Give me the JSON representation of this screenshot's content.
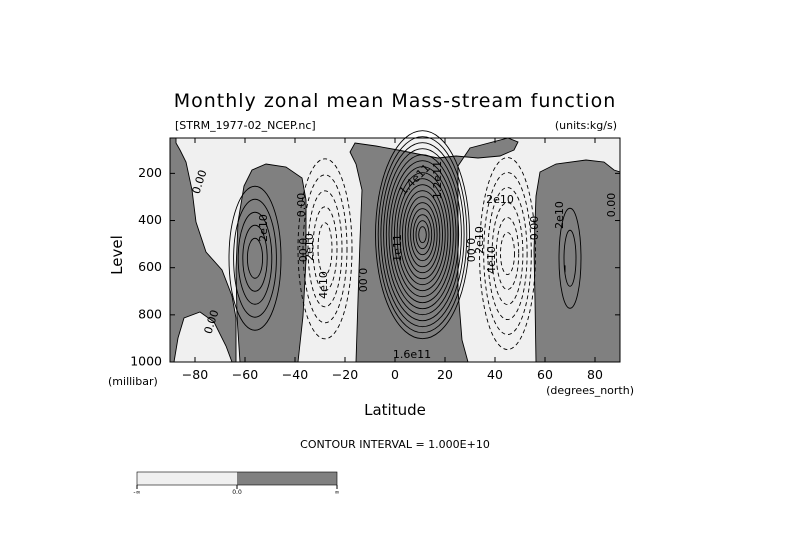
{
  "chart_data": {
    "type": "contour",
    "title": "Monthly zonal mean Mass-stream function",
    "subtitle_left": "[STRM_1977-02_NCEP.nc]",
    "subtitle_right": "(units:kg/s)",
    "xlabel": "Latitude",
    "x_unit": "(degrees_north)",
    "ylabel": "Level",
    "y_unit": "(millibar)",
    "xlim": [
      -90,
      90
    ],
    "ylim": [
      1000,
      50
    ],
    "y_inverted": true,
    "x_ticks": [
      -80,
      -60,
      -40,
      -20,
      0,
      20,
      40,
      60,
      80
    ],
    "x_tick_labels": [
      "−80",
      "−60",
      "−40",
      "−20",
      "0",
      "20",
      "40",
      "60",
      "80"
    ],
    "y_ticks": [
      200,
      400,
      600,
      800,
      1000
    ],
    "y_tick_labels": [
      "200",
      "400",
      "600",
      "800",
      "1000"
    ],
    "contour_interval": 10000000000.0,
    "contour_interval_label": "CONTOUR INTERVAL = 1.000E+10",
    "shading": "dark gray for positive values, light gray for negative values",
    "colors": {
      "positive": "#808080",
      "negative": "#f0f0f0",
      "lines": "#000000"
    },
    "cells": [
      {
        "center_lat": -56,
        "center_level": 550,
        "peak": 50000000000.0,
        "sign": "positive"
      },
      {
        "center_lat": -28,
        "center_level": 500,
        "peak": -50000000000.0,
        "sign": "negative"
      },
      {
        "center_lat": 11,
        "center_level": 450,
        "peak": 170000000000.0,
        "sign": "positive"
      },
      {
        "center_lat": 45,
        "center_level": 550,
        "peak": -60000000000.0,
        "sign": "negative"
      },
      {
        "center_lat": 70,
        "center_level": 550,
        "peak": 10000000000.0,
        "sign": "positive"
      }
    ],
    "contour_labels": [
      "0.00",
      "0.00",
      "0.00",
      "0.00",
      "0.00",
      "0.00",
      "0.00",
      "0.00",
      "2e10",
      "2e10",
      "4e10",
      "2e10",
      "1e11",
      "1.4e11",
      "1.6e11",
      "1.2e11",
      "2e10",
      "4e10",
      "2e10"
    ],
    "colorbar": {
      "segments": [
        {
          "color": "#f0f0f0"
        },
        {
          "color": "#808080"
        }
      ],
      "labels": [
        "-∞",
        "0.0",
        "∞"
      ]
    }
  }
}
